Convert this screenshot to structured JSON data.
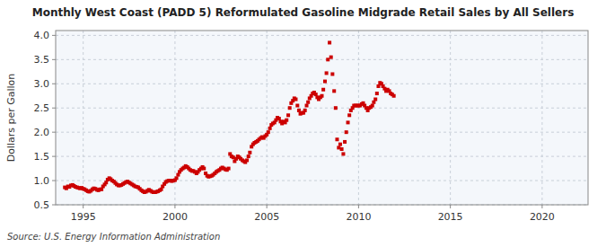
{
  "chart_data": {
    "type": "scatter",
    "title": "Monthly West Coast (PADD 5) Reformulated Gasoline Midgrade Retail Sales by All Sellers",
    "ylabel": "Dollars per Gallon",
    "annotations": [
      "Source: U.S. Energy Information Administration"
    ],
    "color": "#cc0000",
    "marker": "square",
    "grid": true,
    "xlim": [
      1993.5,
      2022.5
    ],
    "ylim": [
      0.5,
      4.1
    ],
    "xticks": [
      1995,
      2000,
      2005,
      2010,
      2015,
      2020
    ],
    "yticks": [
      0.5,
      {
        "value": 1.0,
        "label": "1.0"
      },
      1.5,
      {
        "value": 2.0,
        "label": "2.0"
      },
      2.5,
      {
        "value": 3.0,
        "label": "3.0"
      },
      3.5,
      {
        "value": 4.0,
        "label": "4.0"
      }
    ],
    "x": [
      1994.0,
      1994.08,
      1994.17,
      1994.25,
      1994.33,
      1994.42,
      1994.5,
      1994.58,
      1994.67,
      1994.75,
      1994.83,
      1994.92,
      1995.0,
      1995.08,
      1995.17,
      1995.25,
      1995.33,
      1995.42,
      1995.5,
      1995.58,
      1995.67,
      1995.75,
      1995.83,
      1995.92,
      1996.0,
      1996.08,
      1996.17,
      1996.25,
      1996.33,
      1996.42,
      1996.5,
      1996.58,
      1996.67,
      1996.75,
      1996.83,
      1996.92,
      1997.0,
      1997.08,
      1997.17,
      1997.25,
      1997.33,
      1997.42,
      1997.5,
      1997.58,
      1997.67,
      1997.75,
      1997.83,
      1997.92,
      1998.0,
      1998.08,
      1998.17,
      1998.25,
      1998.33,
      1998.42,
      1998.5,
      1998.58,
      1998.67,
      1998.75,
      1998.83,
      1998.92,
      1999.0,
      1999.08,
      1999.17,
      1999.25,
      1999.33,
      1999.42,
      1999.5,
      1999.58,
      1999.67,
      1999.75,
      1999.83,
      1999.92,
      2000.0,
      2000.08,
      2000.17,
      2000.25,
      2000.33,
      2000.42,
      2000.5,
      2000.58,
      2000.67,
      2000.75,
      2000.83,
      2000.92,
      2001.0,
      2001.08,
      2001.17,
      2001.25,
      2001.33,
      2001.42,
      2001.5,
      2001.58,
      2001.67,
      2001.75,
      2001.83,
      2001.92,
      2002.0,
      2002.08,
      2002.17,
      2002.25,
      2002.33,
      2002.42,
      2002.5,
      2002.58,
      2002.67,
      2002.75,
      2002.83,
      2002.92,
      2003.0,
      2003.08,
      2003.17,
      2003.25,
      2003.33,
      2003.42,
      2003.5,
      2003.58,
      2003.67,
      2003.75,
      2003.83,
      2003.92,
      2004.0,
      2004.08,
      2004.17,
      2004.25,
      2004.33,
      2004.42,
      2004.5,
      2004.58,
      2004.67,
      2004.75,
      2004.83,
      2004.92,
      2005.0,
      2005.08,
      2005.17,
      2005.25,
      2005.33,
      2005.42,
      2005.5,
      2005.58,
      2005.67,
      2005.75,
      2005.83,
      2005.92,
      2006.0,
      2006.08,
      2006.17,
      2006.25,
      2006.33,
      2006.42,
      2006.5,
      2006.58,
      2006.67,
      2006.75,
      2006.83,
      2006.92,
      2007.0,
      2007.08,
      2007.17,
      2007.25,
      2007.33,
      2007.42,
      2007.5,
      2007.58,
      2007.67,
      2007.75,
      2007.83,
      2007.92,
      2008.0,
      2008.08,
      2008.17,
      2008.25,
      2008.33,
      2008.42,
      2008.5,
      2008.58,
      2008.67,
      2008.75,
      2008.83,
      2008.92,
      2009.0,
      2009.08,
      2009.17,
      2009.25,
      2009.33,
      2009.42,
      2009.5,
      2009.58,
      2009.67,
      2009.75,
      2009.83,
      2009.92,
      2010.0,
      2010.08,
      2010.17,
      2010.25,
      2010.33,
      2010.42,
      2010.5,
      2010.58,
      2010.67,
      2010.75,
      2010.83,
      2010.92,
      2011.0,
      2011.08,
      2011.17,
      2011.25,
      2011.33,
      2011.42,
      2011.5,
      2011.58,
      2011.67,
      2011.75,
      2011.83,
      2011.92
    ],
    "values": [
      0.86,
      0.84,
      0.88,
      0.87,
      0.9,
      0.91,
      0.89,
      0.87,
      0.86,
      0.85,
      0.84,
      0.85,
      0.83,
      0.82,
      0.8,
      0.78,
      0.77,
      0.79,
      0.82,
      0.84,
      0.83,
      0.81,
      0.8,
      0.82,
      0.82,
      0.88,
      0.92,
      0.96,
      1.02,
      1.05,
      1.03,
      1.0,
      0.98,
      0.95,
      0.92,
      0.9,
      0.9,
      0.91,
      0.93,
      0.95,
      0.97,
      0.98,
      0.96,
      0.94,
      0.92,
      0.9,
      0.88,
      0.87,
      0.86,
      0.83,
      0.8,
      0.78,
      0.76,
      0.77,
      0.79,
      0.81,
      0.79,
      0.77,
      0.76,
      0.76,
      0.77,
      0.78,
      0.8,
      0.82,
      0.88,
      0.93,
      0.97,
      0.99,
      1.0,
      1.0,
      0.99,
      1.0,
      1.01,
      1.05,
      1.12,
      1.18,
      1.22,
      1.25,
      1.27,
      1.3,
      1.28,
      1.25,
      1.22,
      1.2,
      1.2,
      1.18,
      1.15,
      1.18,
      1.22,
      1.25,
      1.28,
      1.25,
      1.15,
      1.1,
      1.08,
      1.09,
      1.1,
      1.12,
      1.15,
      1.18,
      1.2,
      1.22,
      1.25,
      1.27,
      1.25,
      1.23,
      1.22,
      1.25,
      1.55,
      1.5,
      1.48,
      1.4,
      1.45,
      1.5,
      1.48,
      1.45,
      1.42,
      1.4,
      1.38,
      1.42,
      1.5,
      1.58,
      1.7,
      1.75,
      1.78,
      1.8,
      1.82,
      1.85,
      1.88,
      1.9,
      1.88,
      1.92,
      1.95,
      2.0,
      2.08,
      2.15,
      2.18,
      2.2,
      2.25,
      2.3,
      2.28,
      2.22,
      2.18,
      2.22,
      2.2,
      2.25,
      2.35,
      2.5,
      2.6,
      2.65,
      2.7,
      2.68,
      2.55,
      2.45,
      2.38,
      2.4,
      2.4,
      2.45,
      2.55,
      2.62,
      2.7,
      2.75,
      2.8,
      2.82,
      2.78,
      2.72,
      2.68,
      2.72,
      2.75,
      2.88,
      3.05,
      3.22,
      3.5,
      3.85,
      3.55,
      3.2,
      2.85,
      2.5,
      1.85,
      1.68,
      1.75,
      1.65,
      1.55,
      1.8,
      2.0,
      2.2,
      2.35,
      2.45,
      2.5,
      2.55,
      2.55,
      2.55,
      2.55,
      2.55,
      2.58,
      2.6,
      2.55,
      2.5,
      2.45,
      2.5,
      2.52,
      2.55,
      2.62,
      2.68,
      2.8,
      2.95,
      3.02,
      3.0,
      2.95,
      2.9,
      2.85,
      2.88,
      2.85,
      2.8,
      2.78,
      2.75
    ]
  }
}
